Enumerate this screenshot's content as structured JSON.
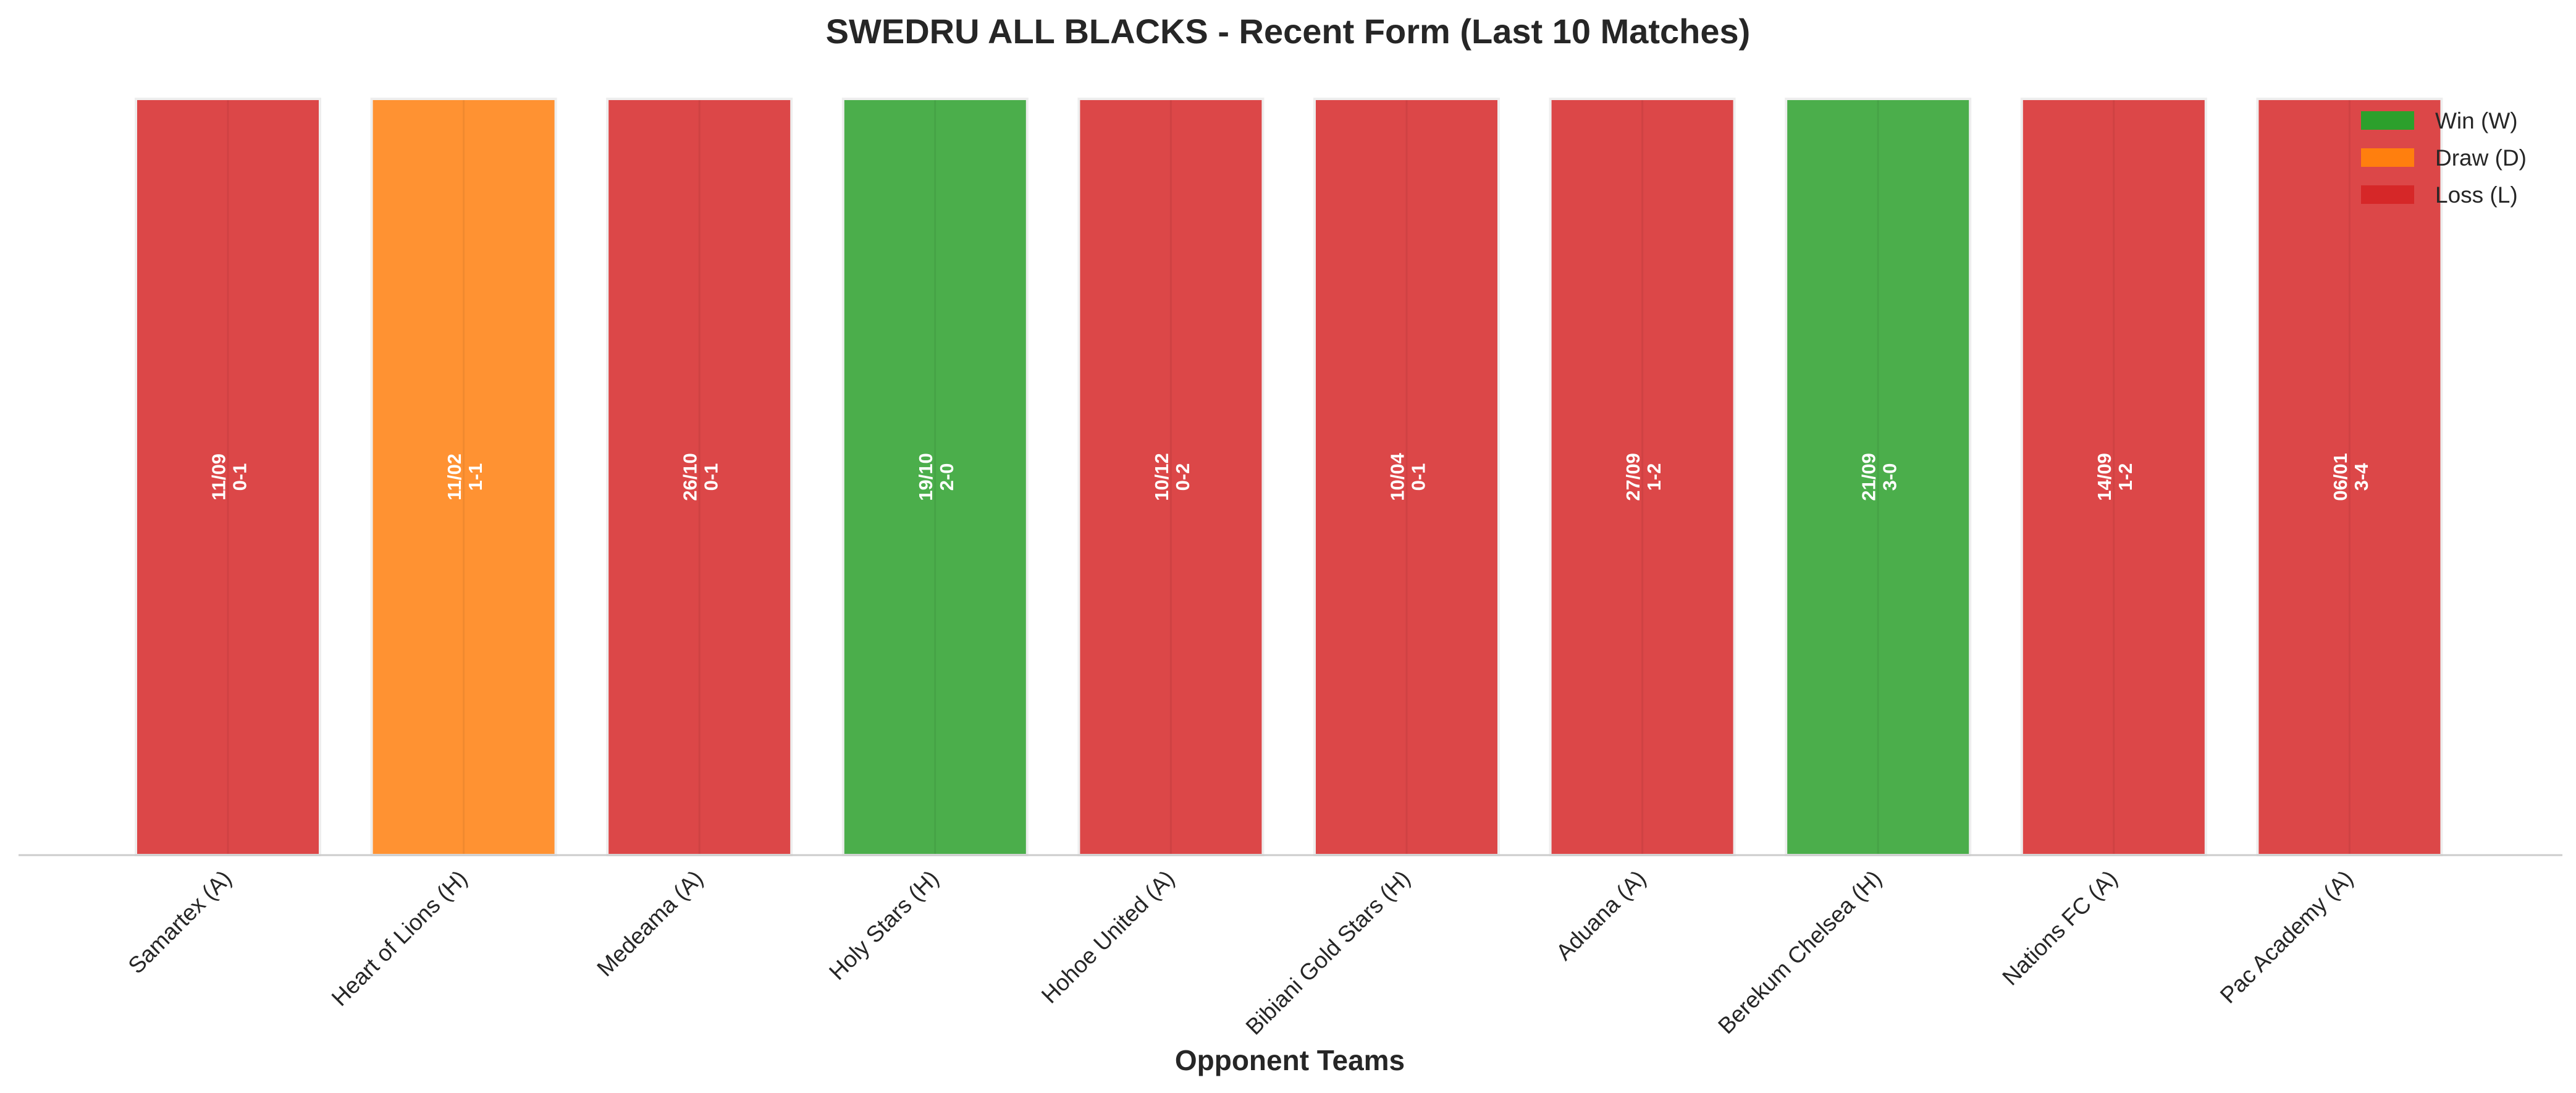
{
  "chart_data": {
    "type": "bar",
    "title": "SWEDRU ALL BLACKS - Recent Form (Last 10 Matches)",
    "xlabel": "Opponent Teams",
    "ylabel": "",
    "ylim": [
      0,
      1
    ],
    "grid": false,
    "legend_position": "top-right",
    "categories": [
      "Samartex (A)",
      "Heart of Lions (H)",
      "Medeama (A)",
      "Holy Stars (H)",
      "Hohoe United (A)",
      "Bibiani Gold Stars (H)",
      "Aduana (A)",
      "Berekum Chelsea (H)",
      "Nations FC (A)",
      "Pac Academy (A)"
    ],
    "values": [
      1,
      1,
      1,
      1,
      1,
      1,
      1,
      1,
      1,
      1
    ],
    "results": [
      "L",
      "D",
      "L",
      "W",
      "L",
      "L",
      "L",
      "W",
      "L",
      "L"
    ],
    "dates": [
      "11/09",
      "11/02",
      "26/10",
      "19/10",
      "10/12",
      "10/04",
      "27/09",
      "21/09",
      "14/09",
      "06/01"
    ],
    "scores": [
      "0-1",
      "1-1",
      "0-1",
      "2-0",
      "0-2",
      "0-1",
      "1-2",
      "3-0",
      "1-2",
      "3-4"
    ],
    "legend": [
      {
        "key": "W",
        "label": "Win (W)",
        "color": "#2ca02c"
      },
      {
        "key": "D",
        "label": "Draw (D)",
        "color": "#ff7f0e"
      },
      {
        "key": "L",
        "label": "Loss (L)",
        "color": "#d62728"
      }
    ]
  }
}
